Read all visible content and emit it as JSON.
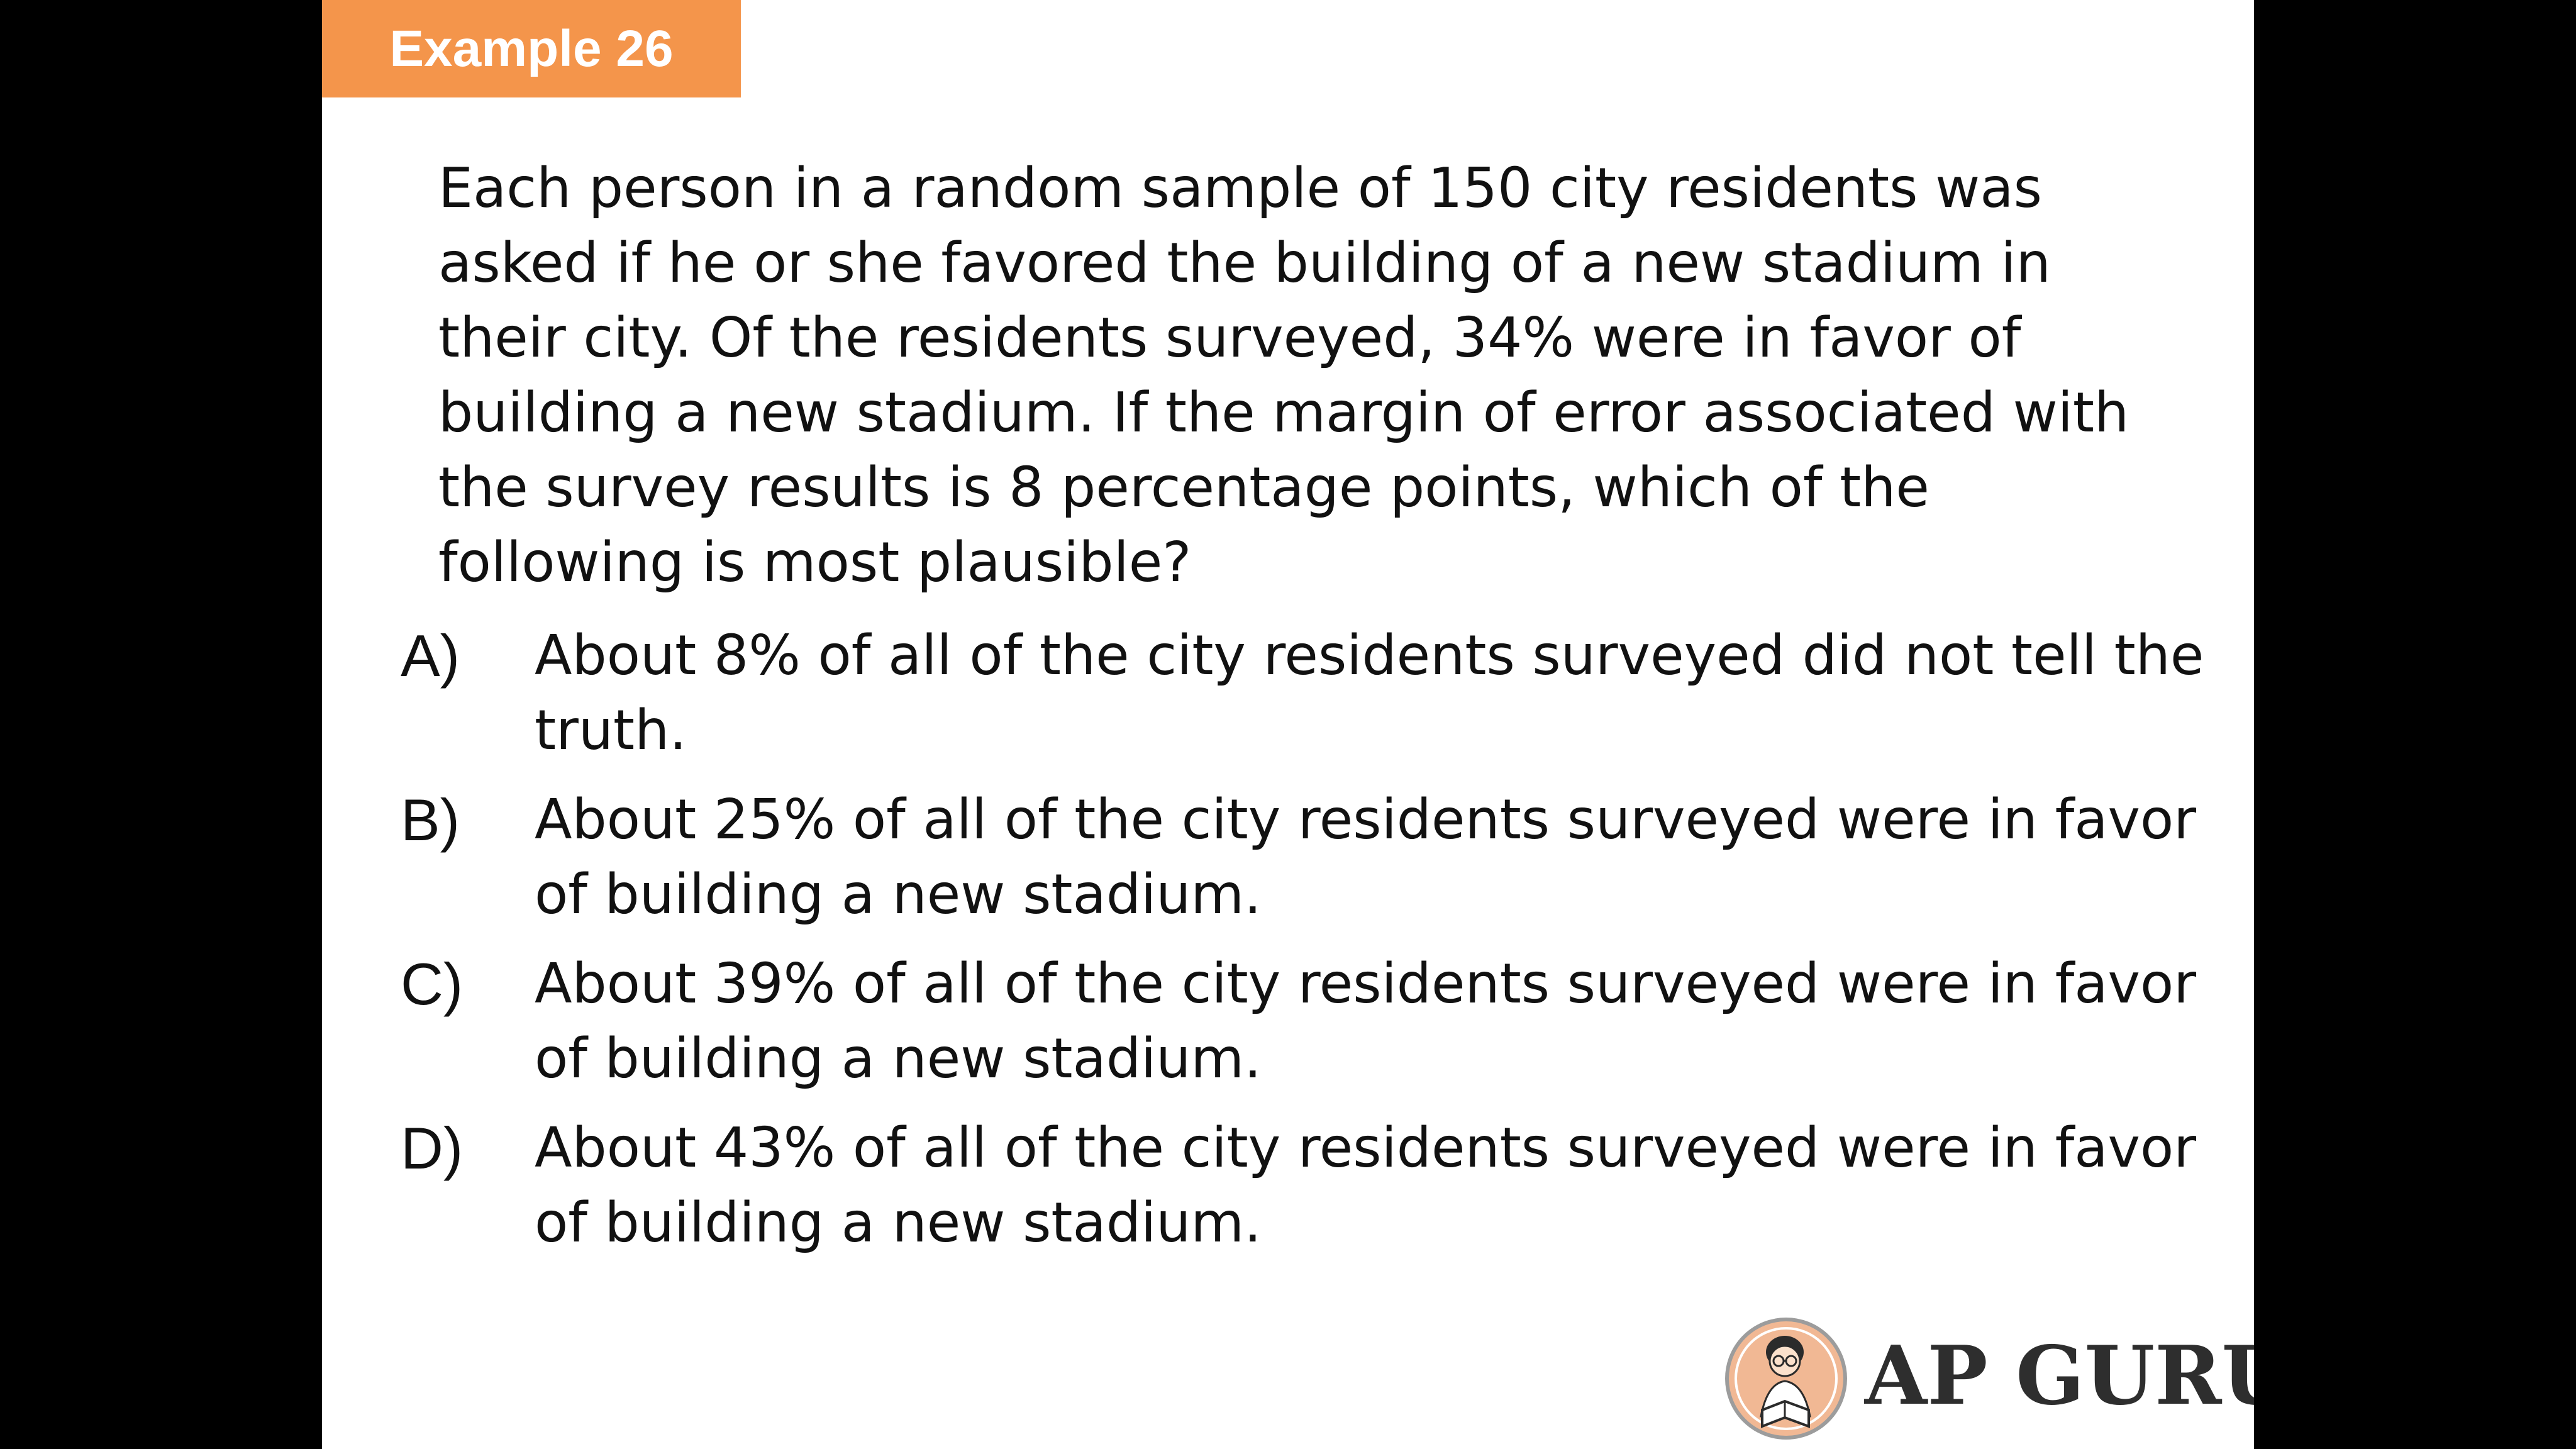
{
  "badge": {
    "label": "Example 26",
    "color": "#f4954b"
  },
  "question": {
    "text": "Each person in a random sample of 150 city residents was asked if he or she favored the building of a new stadium in their city. Of the residents surveyed, 34% were in favor of building a new stadium. If the margin of error associated with the survey results is 8 percentage points, which of the following is most plausible?"
  },
  "options": [
    {
      "letter": "A)",
      "text": "About 8% of all of the city residents surveyed did not tell the truth."
    },
    {
      "letter": "B)",
      "text": "About 25% of all of the city residents surveyed were in favor of building a new stadium."
    },
    {
      "letter": "C)",
      "text": "About 39% of all of the city residents surveyed were in favor of building a new stadium."
    },
    {
      "letter": "D)",
      "text": "About 43% of all of the city residents surveyed were in favor of building a new stadium."
    }
  ],
  "logo": {
    "text": "AP GURU",
    "icon": "reading-student-icon"
  }
}
